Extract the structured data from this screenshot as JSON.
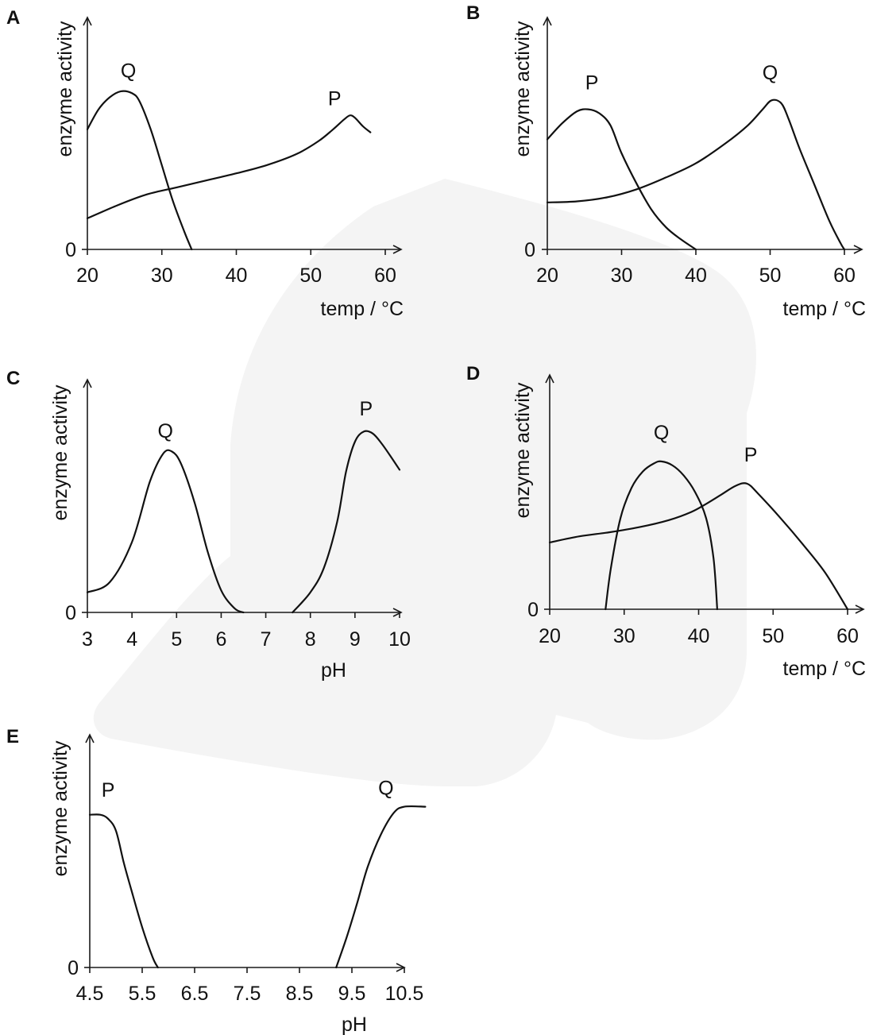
{
  "colors": {
    "ink": "#111111",
    "watermark": "#f4f4f4",
    "background": "#ffffff"
  },
  "chart_data": [
    {
      "panel": "A",
      "type": "line",
      "ylabel": "enzyme activity",
      "xlabel": "temp / °C",
      "xticks": [
        20,
        30,
        40,
        50,
        60
      ],
      "xlim": [
        20,
        60
      ],
      "yticks": [
        0
      ],
      "ylim": [
        0,
        1
      ],
      "series": [
        {
          "name": "Q",
          "points": [
            [
              20,
              0.6
            ],
            [
              21.5,
              0.7
            ],
            [
              23,
              0.76
            ],
            [
              24.5,
              0.79
            ],
            [
              26,
              0.78
            ],
            [
              27,
              0.74
            ],
            [
              28.5,
              0.6
            ],
            [
              30,
              0.42
            ],
            [
              31.5,
              0.24
            ],
            [
              33,
              0.09
            ],
            [
              34,
              0.0
            ]
          ]
        },
        {
          "name": "P",
          "points": [
            [
              20,
              0.155
            ],
            [
              24,
              0.22
            ],
            [
              28,
              0.275
            ],
            [
              32,
              0.31
            ],
            [
              36,
              0.345
            ],
            [
              40,
              0.38
            ],
            [
              44,
              0.42
            ],
            [
              48,
              0.475
            ],
            [
              51,
              0.54
            ],
            [
              53,
              0.6
            ],
            [
              54.5,
              0.65
            ],
            [
              55.3,
              0.67
            ],
            [
              56,
              0.655
            ],
            [
              57,
              0.615
            ],
            [
              58,
              0.585
            ]
          ]
        }
      ],
      "labels": [
        {
          "text": "Q",
          "x": 25.5,
          "y": 0.86
        },
        {
          "text": "P",
          "x": 53.2,
          "y": 0.72
        }
      ]
    },
    {
      "panel": "B",
      "type": "line",
      "ylabel": "enzyme activity",
      "xlabel": "temp / °C",
      "xticks": [
        20,
        30,
        40,
        50,
        60
      ],
      "xlim": [
        20,
        60
      ],
      "yticks": [
        0
      ],
      "ylim": [
        0,
        1
      ],
      "series": [
        {
          "name": "P",
          "points": [
            [
              20,
              0.55
            ],
            [
              22,
              0.63
            ],
            [
              24,
              0.69
            ],
            [
              25.5,
              0.7
            ],
            [
              27,
              0.68
            ],
            [
              28.5,
              0.62
            ],
            [
              30,
              0.48
            ],
            [
              32,
              0.33
            ],
            [
              34,
              0.2
            ],
            [
              36,
              0.11
            ],
            [
              38,
              0.05
            ],
            [
              40,
              0.0
            ]
          ]
        },
        {
          "name": "Q",
          "points": [
            [
              20,
              0.235
            ],
            [
              24,
              0.24
            ],
            [
              28,
              0.26
            ],
            [
              32,
              0.3
            ],
            [
              36,
              0.36
            ],
            [
              40,
              0.43
            ],
            [
              44,
              0.53
            ],
            [
              47,
              0.62
            ],
            [
              49,
              0.7
            ],
            [
              50.2,
              0.745
            ],
            [
              51.5,
              0.73
            ],
            [
              52.5,
              0.65
            ],
            [
              54,
              0.5
            ],
            [
              56,
              0.32
            ],
            [
              58,
              0.14
            ],
            [
              59.5,
              0.03
            ],
            [
              60,
              0.0
            ]
          ]
        }
      ],
      "labels": [
        {
          "text": "P",
          "x": 26,
          "y": 0.8
        },
        {
          "text": "Q",
          "x": 50,
          "y": 0.85
        }
      ]
    },
    {
      "panel": "C",
      "type": "line",
      "ylabel": "enzyme activity",
      "xlabel": "pH",
      "xticks": [
        3,
        4,
        5,
        6,
        7,
        8,
        9,
        10
      ],
      "xlim": [
        3,
        11
      ],
      "yticks": [
        0
      ],
      "ylim": [
        0,
        1
      ],
      "series": [
        {
          "name": "Q",
          "points": [
            [
              3,
              0.1
            ],
            [
              3.5,
              0.15
            ],
            [
              4,
              0.35
            ],
            [
              4.4,
              0.65
            ],
            [
              4.7,
              0.79
            ],
            [
              4.9,
              0.8
            ],
            [
              5.1,
              0.74
            ],
            [
              5.4,
              0.55
            ],
            [
              5.7,
              0.3
            ],
            [
              6.0,
              0.11
            ],
            [
              6.3,
              0.02
            ],
            [
              6.5,
              0.0
            ]
          ]
        },
        {
          "name": "P",
          "points": [
            [
              7.6,
              0.0
            ],
            [
              8.0,
              0.1
            ],
            [
              8.3,
              0.22
            ],
            [
              8.6,
              0.45
            ],
            [
              8.8,
              0.7
            ],
            [
              9.0,
              0.85
            ],
            [
              9.2,
              0.9
            ],
            [
              9.4,
              0.89
            ],
            [
              9.6,
              0.84
            ],
            [
              9.85,
              0.76
            ],
            [
              10.0,
              0.71
            ]
          ]
        }
      ],
      "labels": [
        {
          "text": "Q",
          "x": 4.75,
          "y": 0.87
        },
        {
          "text": "P",
          "x": 9.25,
          "y": 0.98
        }
      ]
    },
    {
      "panel": "D",
      "type": "line",
      "ylabel": "enzyme activity",
      "xlabel": "temp / °C",
      "xticks": [
        20,
        30,
        40,
        50,
        60
      ],
      "xlim": [
        20,
        60
      ],
      "yticks": [
        0
      ],
      "ylim": [
        0,
        1
      ],
      "series": [
        {
          "name": "Q",
          "points": [
            [
              27.5,
              0.0
            ],
            [
              28.2,
              0.2
            ],
            [
              29.5,
              0.45
            ],
            [
              31,
              0.6
            ],
            [
              32.5,
              0.68
            ],
            [
              34,
              0.72
            ],
            [
              35,
              0.73
            ],
            [
              36.5,
              0.71
            ],
            [
              38,
              0.66
            ],
            [
              39.5,
              0.58
            ],
            [
              41,
              0.45
            ],
            [
              42,
              0.25
            ],
            [
              42.5,
              0.0
            ]
          ]
        },
        {
          "name": "P",
          "points": [
            [
              20,
              0.33
            ],
            [
              24,
              0.36
            ],
            [
              28,
              0.38
            ],
            [
              32,
              0.405
            ],
            [
              36,
              0.44
            ],
            [
              39,
              0.48
            ],
            [
              41,
              0.52
            ],
            [
              43,
              0.565
            ],
            [
              45,
              0.61
            ],
            [
              46.5,
              0.62
            ],
            [
              48,
              0.57
            ],
            [
              51,
              0.45
            ],
            [
              54,
              0.32
            ],
            [
              57,
              0.18
            ],
            [
              60,
              0.0
            ]
          ]
        }
      ],
      "labels": [
        {
          "text": "Q",
          "x": 35,
          "y": 0.84
        },
        {
          "text": "P",
          "x": 47,
          "y": 0.73
        }
      ]
    },
    {
      "panel": "E",
      "type": "line",
      "ylabel": "enzyme activity",
      "xlabel": "pH",
      "xticks": [
        "4.5",
        "5.5",
        "6.5",
        "7.5",
        "8.5",
        "9.5",
        "10.5"
      ],
      "xtick_values": [
        4.5,
        5.5,
        6.5,
        7.5,
        8.5,
        9.5,
        10.5
      ],
      "xlim": [
        4.5,
        11
      ],
      "yticks": [
        0
      ],
      "ylim": [
        0,
        1
      ],
      "series": [
        {
          "name": "P",
          "points": [
            [
              4.5,
              0.76
            ],
            [
              4.7,
              0.76
            ],
            [
              4.85,
              0.74
            ],
            [
              5.0,
              0.68
            ],
            [
              5.15,
              0.52
            ],
            [
              5.3,
              0.38
            ],
            [
              5.5,
              0.2
            ],
            [
              5.7,
              0.05
            ],
            [
              5.8,
              0.0
            ]
          ]
        },
        {
          "name": "Q",
          "points": [
            [
              9.2,
              0.0
            ],
            [
              9.4,
              0.15
            ],
            [
              9.6,
              0.32
            ],
            [
              9.8,
              0.5
            ],
            [
              10.05,
              0.66
            ],
            [
              10.3,
              0.77
            ],
            [
              10.5,
              0.8
            ],
            [
              10.9,
              0.8
            ]
          ]
        }
      ],
      "labels": [
        {
          "text": "P",
          "x": 4.85,
          "y": 0.85
        },
        {
          "text": "Q",
          "x": 10.15,
          "y": 0.86
        }
      ]
    }
  ]
}
